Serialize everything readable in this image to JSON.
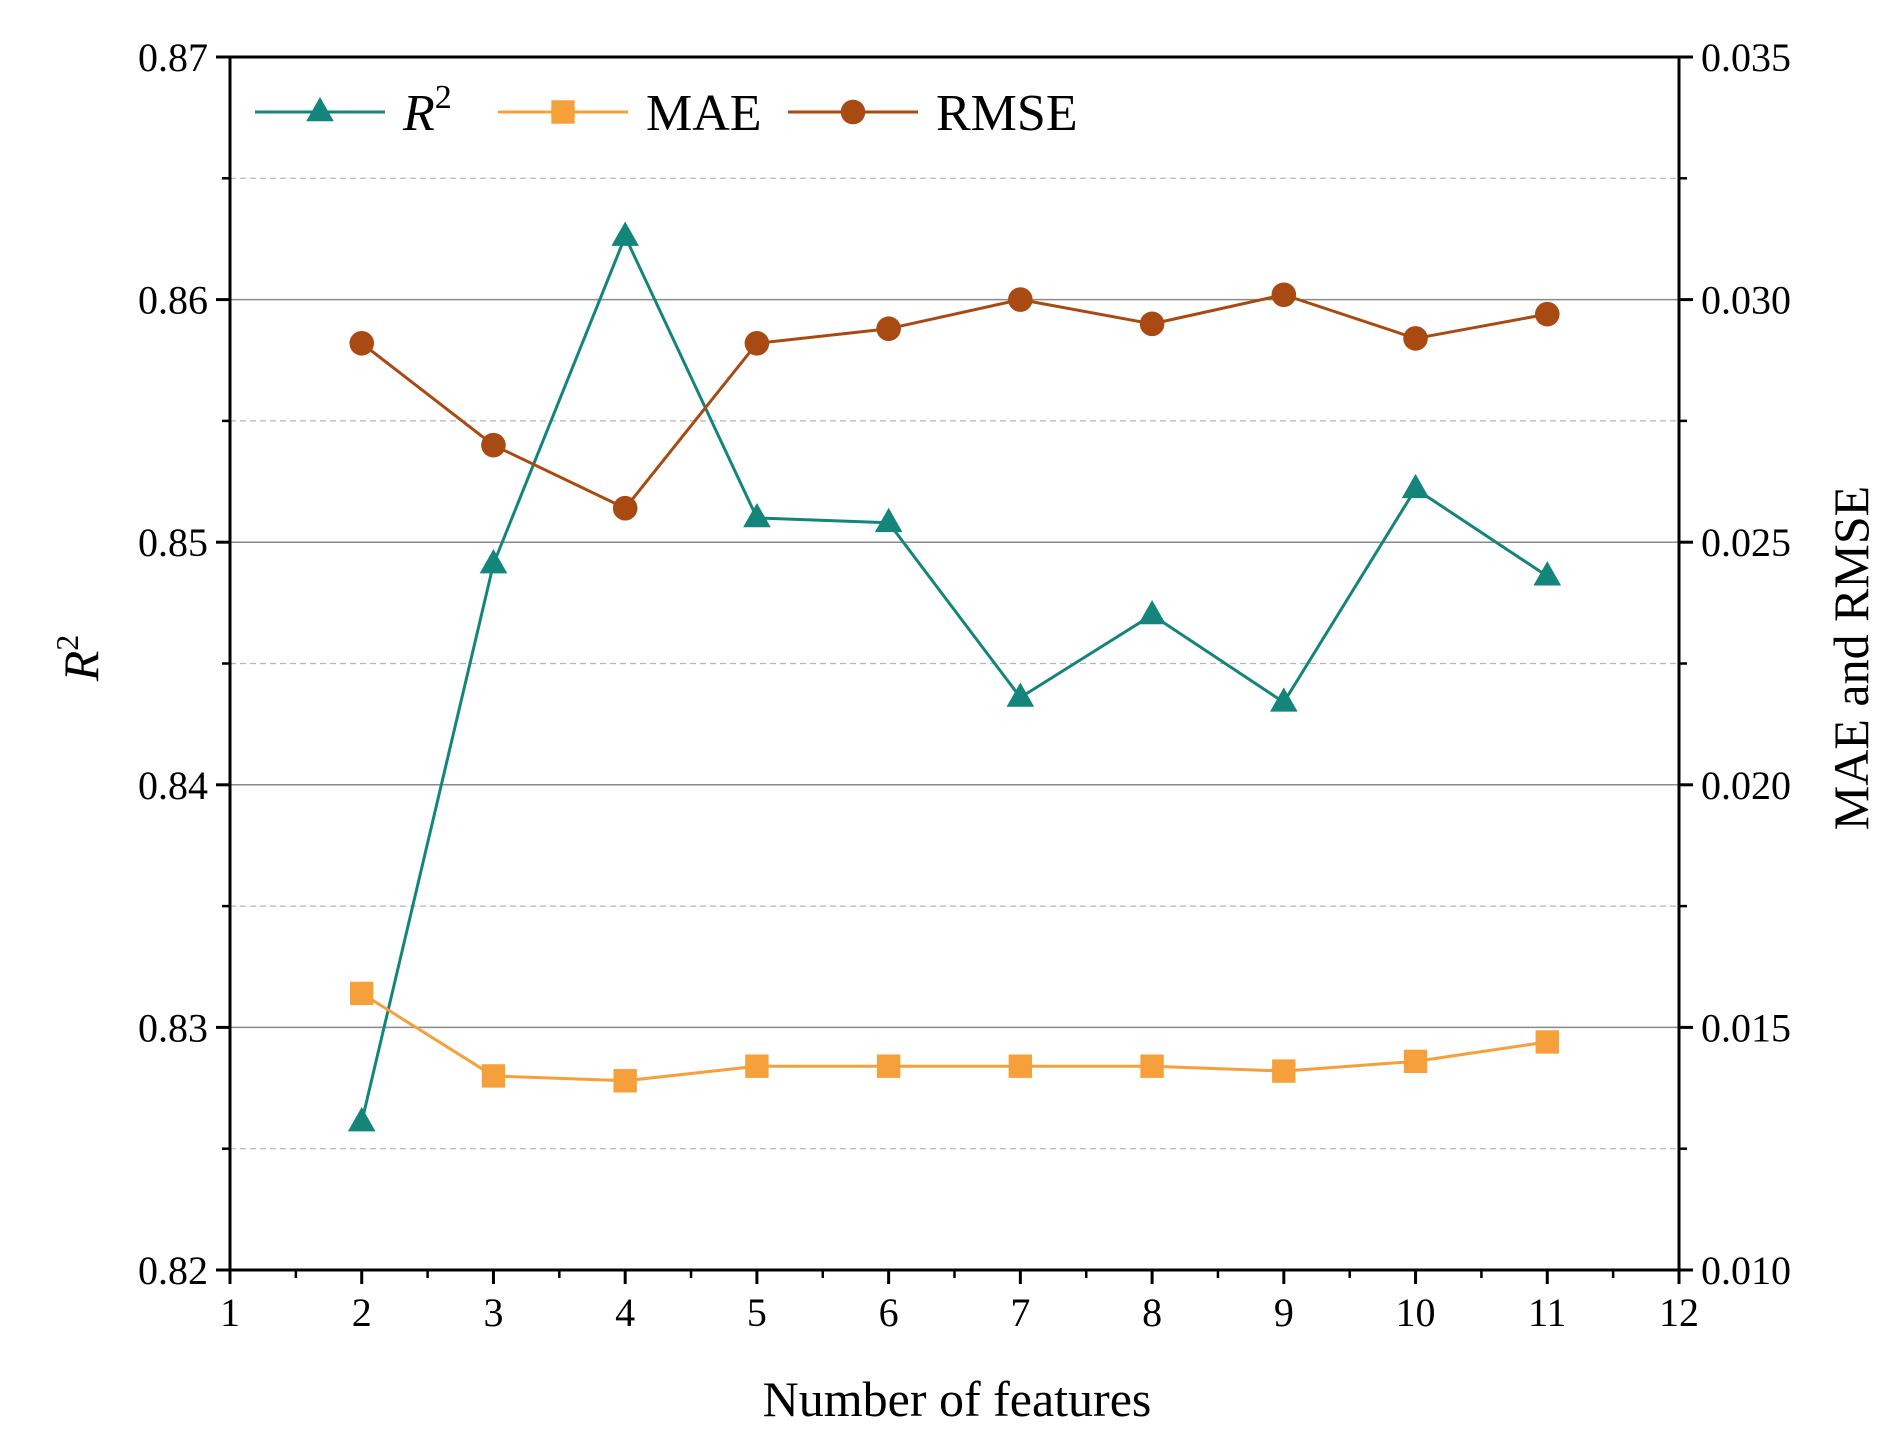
{
  "chart_data": {
    "type": "line",
    "title": "",
    "xlabel": "Number of features",
    "ylabel_left_base": "R",
    "ylabel_left_sup": "2",
    "ylabel_right": "MAE and RMSE",
    "x": [
      2,
      3,
      4,
      5,
      6,
      7,
      8,
      9,
      10,
      11
    ],
    "xlim": [
      1,
      12
    ],
    "x_ticks": [
      1,
      2,
      3,
      4,
      5,
      6,
      7,
      8,
      9,
      10,
      11,
      12
    ],
    "ylim_left": [
      0.82,
      0.87
    ],
    "ylim_right": [
      0.01,
      0.035
    ],
    "y_ticks_left": [
      "0.82",
      "0.83",
      "0.84",
      "0.85",
      "0.86",
      "0.87"
    ],
    "y_ticks_right": [
      "0.010",
      "0.015",
      "0.020",
      "0.025",
      "0.030",
      "0.035"
    ],
    "grid": true,
    "legend_position": "top-left",
    "series": [
      {
        "name_base": "R",
        "name_sup": "2",
        "axis": "left",
        "marker": "triangle",
        "color": "#13857a",
        "values": [
          0.8261,
          0.8491,
          0.8626,
          0.851,
          0.8508,
          0.8436,
          0.847,
          0.8434,
          0.8522,
          0.8486
        ]
      },
      {
        "name": "MAE",
        "axis": "right",
        "marker": "square",
        "color": "#f5a03a",
        "values": [
          0.0157,
          0.014,
          0.0139,
          0.0142,
          0.0142,
          0.0142,
          0.0142,
          0.0141,
          0.0143,
          0.0147
        ]
      },
      {
        "name": "RMSE",
        "axis": "right",
        "marker": "circle",
        "color": "#a94a13",
        "values": [
          0.0291,
          0.027,
          0.0257,
          0.0291,
          0.0294,
          0.03,
          0.0295,
          0.0301,
          0.0292,
          0.0297
        ]
      }
    ]
  }
}
